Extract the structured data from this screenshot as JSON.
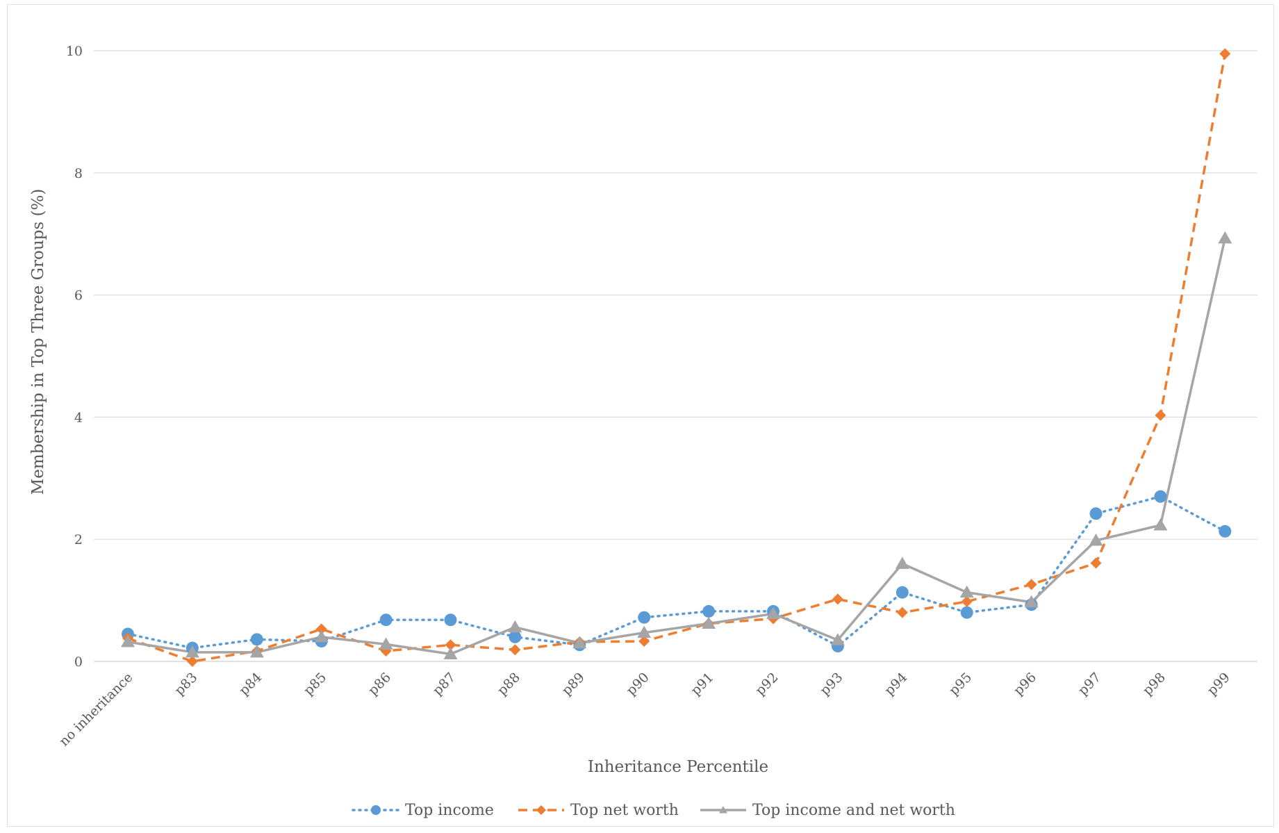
{
  "chart_data": {
    "type": "line",
    "title": "",
    "xlabel": "Inheritance Percentile",
    "ylabel": "Membership in Top Three Groups (%)",
    "ylim": [
      0,
      10
    ],
    "yticks": [
      0,
      2,
      4,
      6,
      8,
      10
    ],
    "grid": "horizontal",
    "legend_position": "bottom",
    "categories": [
      "no inheritance",
      "p83",
      "p84",
      "p85",
      "p86",
      "p87",
      "p88",
      "p89",
      "p90",
      "p91",
      "p92",
      "p93",
      "p94",
      "p95",
      "p96",
      "p97",
      "p98",
      "p99"
    ],
    "series": [
      {
        "name": "Top income",
        "color": "#5b9bd5",
        "style": "dotted",
        "marker": "circle",
        "values": [
          0.45,
          0.22,
          0.36,
          0.33,
          0.68,
          0.68,
          0.4,
          0.27,
          0.72,
          0.82,
          0.82,
          0.25,
          1.13,
          0.8,
          0.93,
          2.42,
          2.7,
          2.13
        ]
      },
      {
        "name": "Top net worth",
        "color": "#ed7d31",
        "style": "dashed",
        "marker": "diamond",
        "values": [
          0.38,
          0.0,
          0.17,
          0.53,
          0.17,
          0.27,
          0.19,
          0.32,
          0.33,
          0.62,
          0.7,
          1.02,
          0.8,
          0.98,
          1.26,
          1.61,
          4.03,
          9.95
        ]
      },
      {
        "name": "Top income and net worth",
        "color": "#a5a5a5",
        "style": "solid",
        "marker": "triangle",
        "values": [
          0.32,
          0.15,
          0.15,
          0.4,
          0.28,
          0.12,
          0.56,
          0.3,
          0.47,
          0.62,
          0.78,
          0.35,
          1.6,
          1.13,
          0.97,
          1.98,
          2.23,
          6.93
        ]
      }
    ]
  }
}
